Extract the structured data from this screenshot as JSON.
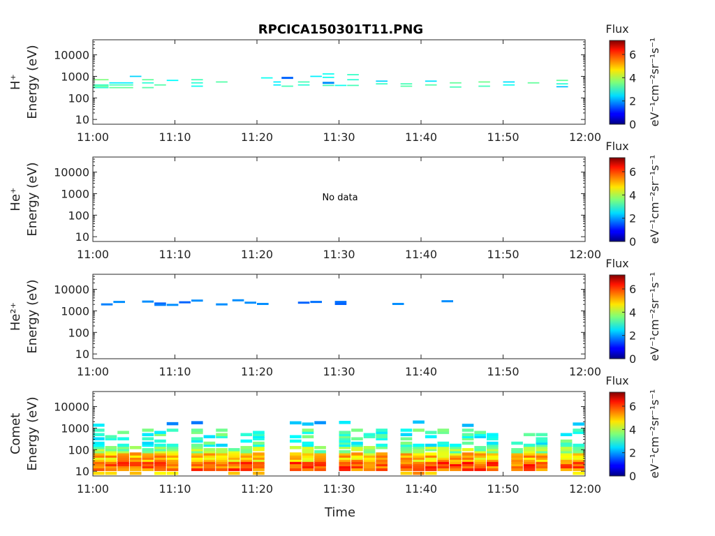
{
  "chart_data": {
    "type": "heatmap",
    "title": "RPCICA150301T11.PNG",
    "xlabel": "Time",
    "x_ticks": [
      "11:00",
      "11:10",
      "11:20",
      "11:30",
      "11:40",
      "11:50",
      "12:00"
    ],
    "x_range_minutes": [
      0,
      60
    ],
    "y_scale": "log",
    "y_ticks": [
      10,
      100,
      1000,
      10000
    ],
    "y_range_eV": [
      6,
      50000
    ],
    "colorbar": {
      "title": "Flux",
      "unit_label": "eV⁻¹cm⁻²sr⁻¹s⁻¹",
      "ticks": [
        0,
        2,
        4,
        6
      ],
      "range": [
        0,
        7.2
      ],
      "colormap": "jet"
    },
    "panels": [
      {
        "species": "H⁺",
        "ylabel": "Energy (eV)",
        "no_data_text": "",
        "cells": [
          [
            0,
            2,
            400,
            3.1
          ],
          [
            0,
            2,
            350,
            3.4
          ],
          [
            0,
            2,
            700,
            3.6
          ],
          [
            0,
            2,
            300,
            3.0
          ],
          [
            2,
            5,
            500,
            2.6
          ],
          [
            2,
            5,
            400,
            3.2
          ],
          [
            2,
            5,
            300,
            3.4
          ],
          [
            4.5,
            6,
            1000,
            2.4
          ],
          [
            6,
            7.5,
            700,
            3.4
          ],
          [
            6,
            7.5,
            500,
            3.0
          ],
          [
            6,
            7.5,
            300,
            3.3
          ],
          [
            7.5,
            9,
            400,
            3.3
          ],
          [
            9,
            10.5,
            650,
            2.7
          ],
          [
            12,
            13.5,
            700,
            3.2
          ],
          [
            12,
            13.5,
            500,
            3.0
          ],
          [
            12,
            13.5,
            350,
            2.8
          ],
          [
            15,
            16.5,
            550,
            3.3
          ],
          [
            20.5,
            22,
            850,
            2.8
          ],
          [
            22,
            23,
            550,
            2.6
          ],
          [
            22,
            23,
            400,
            2.6
          ],
          [
            23,
            24.5,
            850,
            1.6
          ],
          [
            23,
            24.5,
            350,
            3.2
          ],
          [
            25,
            26.5,
            550,
            3.2
          ],
          [
            25,
            26.5,
            400,
            3.0
          ],
          [
            26.5,
            28,
            1000,
            2.6
          ],
          [
            28,
            29.5,
            1300,
            2.8
          ],
          [
            28,
            29.5,
            900,
            2.8
          ],
          [
            28,
            29.5,
            500,
            1.9
          ],
          [
            28,
            29.5,
            380,
            3.2
          ],
          [
            29.5,
            31,
            380,
            2.8
          ],
          [
            31,
            32.5,
            1200,
            3.1
          ],
          [
            31,
            32.5,
            700,
            3.0
          ],
          [
            31,
            32.5,
            380,
            3.2
          ],
          [
            34.5,
            36,
            600,
            2.4
          ],
          [
            34.5,
            36,
            450,
            3.1
          ],
          [
            37.5,
            39,
            450,
            3.2
          ],
          [
            37.5,
            39,
            350,
            3.3
          ],
          [
            40.5,
            42,
            600,
            2.5
          ],
          [
            40.5,
            42,
            400,
            3.3
          ],
          [
            43.5,
            45,
            500,
            3.4
          ],
          [
            43.5,
            45,
            320,
            3.2
          ],
          [
            47,
            48.5,
            550,
            3.5
          ],
          [
            47,
            48.5,
            350,
            3.2
          ],
          [
            50,
            51.5,
            550,
            2.5
          ],
          [
            50,
            51.5,
            400,
            2.8
          ],
          [
            53,
            54.5,
            500,
            3.4
          ],
          [
            56.5,
            58,
            650,
            3.4
          ],
          [
            56.5,
            58,
            450,
            3.0
          ],
          [
            56.5,
            58,
            330,
            2.3
          ]
        ]
      },
      {
        "species": "He⁺",
        "ylabel": "Energy (eV)",
        "no_data_text": "No data",
        "cells": []
      },
      {
        "species": "He²⁺",
        "ylabel": "Energy (eV)",
        "no_data_text": "",
        "cells": [
          [
            1,
            2.5,
            2000,
            1.8
          ],
          [
            2.5,
            4,
            2600,
            1.9
          ],
          [
            6,
            7.5,
            2700,
            1.9
          ],
          [
            7.5,
            9,
            2200,
            1.6
          ],
          [
            7.5,
            9,
            1900,
            1.8
          ],
          [
            9,
            10.5,
            1900,
            1.9
          ],
          [
            10.5,
            12,
            2500,
            1.6
          ],
          [
            12,
            13.5,
            3000,
            1.9
          ],
          [
            15,
            16.5,
            2000,
            1.9
          ],
          [
            17,
            18.5,
            3100,
            1.9
          ],
          [
            18.5,
            20,
            2400,
            1.9
          ],
          [
            20,
            21.5,
            2100,
            1.9
          ],
          [
            25,
            26.5,
            2400,
            1.6
          ],
          [
            26.5,
            28,
            2600,
            1.7
          ],
          [
            29.5,
            31,
            2600,
            1.7
          ],
          [
            29.5,
            31,
            2100,
            1.6
          ],
          [
            36.5,
            38,
            2100,
            1.9
          ],
          [
            42.5,
            44,
            2800,
            1.9
          ]
        ]
      },
      {
        "species": "Comet",
        "ylabel": "Energy (eV)",
        "no_data_text": "",
        "cells": []
      }
    ]
  }
}
